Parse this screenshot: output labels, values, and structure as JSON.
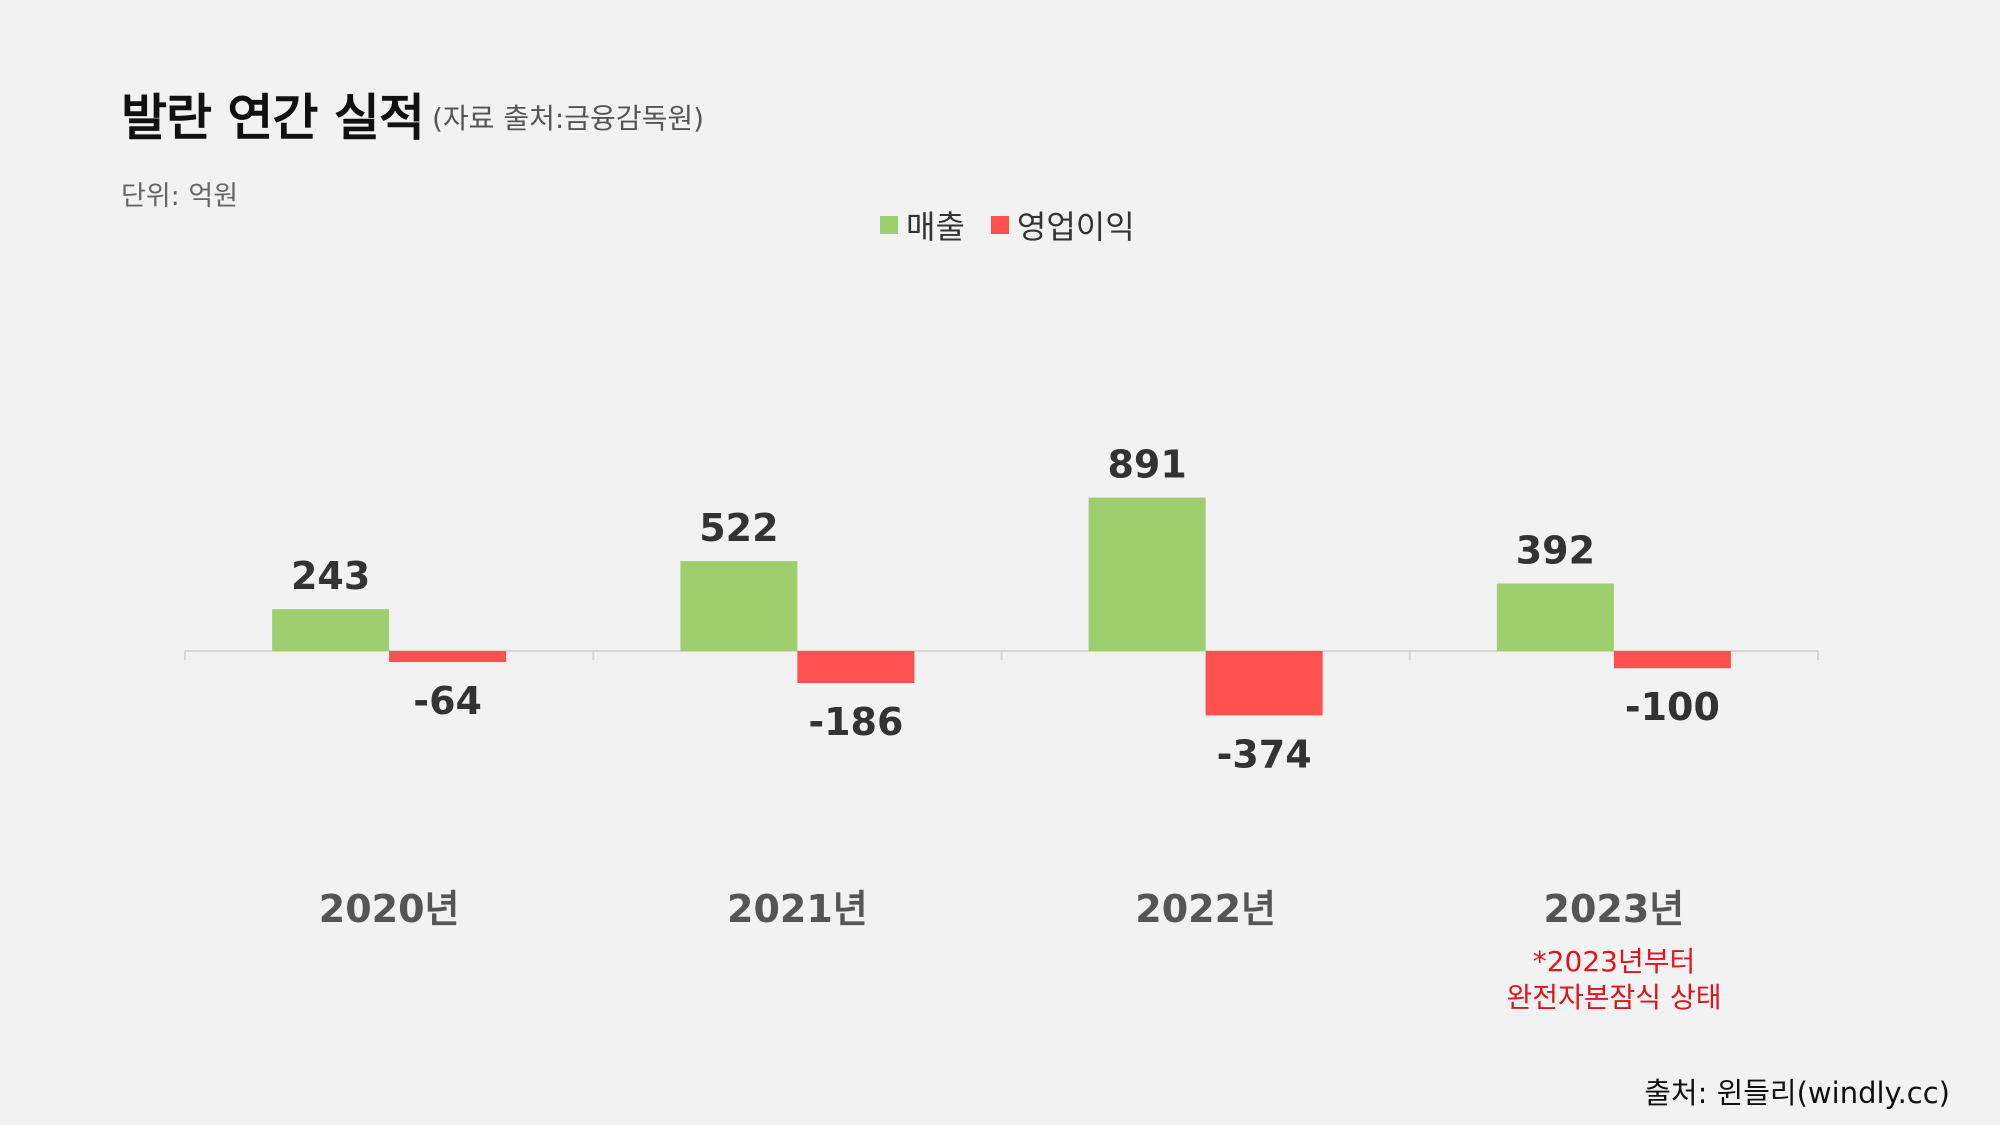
{
  "title": "발란 연간 실적",
  "subtitle": "(자료 출처:금융감독원)",
  "unit": "단위: 억원",
  "note_line1": "*2023년부터",
  "note_line2": "완전자본잠식 상태",
  "source": "출처: 윈들리(windly.cc)",
  "colors": {
    "revenue": "#9ecf6e",
    "operating_profit": "#ff5050",
    "note": "#e0141e"
  },
  "chart_data": {
    "type": "bar",
    "categories": [
      "2020년",
      "2021년",
      "2022년",
      "2023년"
    ],
    "series": [
      {
        "name": "매출",
        "values": [
          243,
          522,
          891,
          392
        ]
      },
      {
        "name": "영업이익",
        "values": [
          -64,
          -186,
          -374,
          -100
        ]
      }
    ],
    "title": "발란 연간 실적",
    "ylabel": "",
    "xlabel": "",
    "ylim": [
      -500,
      1000
    ],
    "grid": false,
    "legend": "top-center",
    "data_labels": true
  }
}
